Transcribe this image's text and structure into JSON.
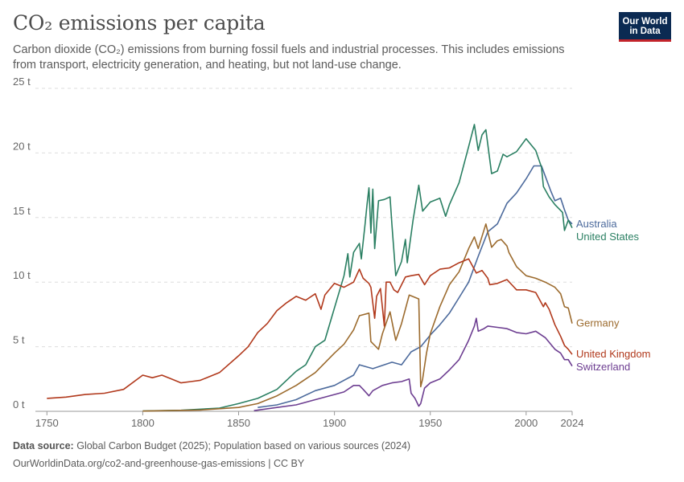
{
  "header": {
    "title": "CO₂ emissions per capita",
    "subtitle": "Carbon dioxide (CO₂) emissions from burning fossil fuels and industrial processes. This includes emissions from transport, electricity generation, and heating, but not land-use change.",
    "logo_line1": "Our World",
    "logo_line2": "in Data"
  },
  "footer": {
    "source_label": "Data source:",
    "source_text": "Global Carbon Budget (2025); Population based on various sources (2024)",
    "url_text": "OurWorldinData.org/co2-and-greenhouse-gas-emissions | CC BY"
  },
  "chart_data": {
    "type": "line",
    "title": "CO₂ emissions per capita",
    "xlim": [
      1744,
      2024
    ],
    "ylim": [
      0,
      25
    ],
    "x_ticks": [
      1750,
      1800,
      1850,
      1900,
      1950,
      2000,
      2024
    ],
    "y_ticks": [
      0,
      5,
      10,
      15,
      20,
      25
    ],
    "y_tick_labels": [
      "0 t",
      "5 t",
      "10 t",
      "15 t",
      "20 t",
      "25 t"
    ],
    "grid": "horizontal dashed",
    "legend": "right, inline labels at line ends",
    "series": [
      {
        "name": "Australia",
        "color": "#4c6a9c",
        "points": [
          [
            1860,
            0.3
          ],
          [
            1870,
            0.5
          ],
          [
            1880,
            0.9
          ],
          [
            1890,
            1.6
          ],
          [
            1900,
            2.0
          ],
          [
            1910,
            2.8
          ],
          [
            1913,
            3.6
          ],
          [
            1920,
            3.3
          ],
          [
            1930,
            3.8
          ],
          [
            1935,
            3.6
          ],
          [
            1940,
            4.6
          ],
          [
            1945,
            5.0
          ],
          [
            1950,
            5.9
          ],
          [
            1955,
            6.7
          ],
          [
            1960,
            7.6
          ],
          [
            1965,
            8.8
          ],
          [
            1970,
            10.0
          ],
          [
            1975,
            12.0
          ],
          [
            1980,
            13.9
          ],
          [
            1985,
            14.5
          ],
          [
            1990,
            16.1
          ],
          [
            1995,
            16.9
          ],
          [
            2000,
            18.0
          ],
          [
            2004,
            19.0
          ],
          [
            2008,
            19.0
          ],
          [
            2010,
            18.2
          ],
          [
            2013,
            17.0
          ],
          [
            2015,
            16.3
          ],
          [
            2018,
            16.5
          ],
          [
            2020,
            15.6
          ],
          [
            2022,
            14.8
          ],
          [
            2024,
            14.5
          ]
        ]
      },
      {
        "name": "United States",
        "color": "#2a7f62",
        "points": [
          [
            1800,
            0.03
          ],
          [
            1820,
            0.08
          ],
          [
            1840,
            0.25
          ],
          [
            1850,
            0.6
          ],
          [
            1860,
            1.0
          ],
          [
            1870,
            1.7
          ],
          [
            1880,
            3.1
          ],
          [
            1885,
            3.6
          ],
          [
            1890,
            5.0
          ],
          [
            1895,
            5.5
          ],
          [
            1900,
            8.0
          ],
          [
            1905,
            10.5
          ],
          [
            1907,
            12.2
          ],
          [
            1908,
            10.4
          ],
          [
            1910,
            12.3
          ],
          [
            1913,
            13.0
          ],
          [
            1914,
            11.8
          ],
          [
            1916,
            14.5
          ],
          [
            1917,
            16.0
          ],
          [
            1918,
            17.3
          ],
          [
            1919,
            13.8
          ],
          [
            1920,
            17.2
          ],
          [
            1921,
            12.6
          ],
          [
            1923,
            16.3
          ],
          [
            1926,
            16.4
          ],
          [
            1929,
            16.6
          ],
          [
            1930,
            14.4
          ],
          [
            1932,
            10.5
          ],
          [
            1935,
            11.6
          ],
          [
            1937,
            13.3
          ],
          [
            1938,
            11.5
          ],
          [
            1941,
            14.8
          ],
          [
            1944,
            17.5
          ],
          [
            1946,
            15.5
          ],
          [
            1950,
            16.2
          ],
          [
            1955,
            16.5
          ],
          [
            1958,
            15.1
          ],
          [
            1960,
            16.0
          ],
          [
            1965,
            17.7
          ],
          [
            1970,
            20.5
          ],
          [
            1973,
            22.2
          ],
          [
            1975,
            20.2
          ],
          [
            1977,
            21.4
          ],
          [
            1979,
            21.8
          ],
          [
            1982,
            18.4
          ],
          [
            1985,
            18.6
          ],
          [
            1988,
            19.9
          ],
          [
            1990,
            19.7
          ],
          [
            1995,
            20.1
          ],
          [
            2000,
            21.1
          ],
          [
            2005,
            20.2
          ],
          [
            2008,
            18.9
          ],
          [
            2009,
            17.4
          ],
          [
            2012,
            16.6
          ],
          [
            2015,
            16.0
          ],
          [
            2019,
            15.4
          ],
          [
            2020,
            14.0
          ],
          [
            2022,
            14.8
          ],
          [
            2024,
            14.2
          ]
        ]
      },
      {
        "name": "Germany",
        "color": "#9c6b2e",
        "points": [
          [
            1800,
            0.02
          ],
          [
            1830,
            0.1
          ],
          [
            1850,
            0.3
          ],
          [
            1860,
            0.6
          ],
          [
            1870,
            1.2
          ],
          [
            1880,
            2.0
          ],
          [
            1890,
            3.0
          ],
          [
            1900,
            4.5
          ],
          [
            1905,
            5.2
          ],
          [
            1910,
            6.3
          ],
          [
            1913,
            7.4
          ],
          [
            1918,
            7.6
          ],
          [
            1919,
            5.4
          ],
          [
            1923,
            4.8
          ],
          [
            1925,
            6.0
          ],
          [
            1929,
            7.7
          ],
          [
            1932,
            5.5
          ],
          [
            1935,
            6.8
          ],
          [
            1939,
            9.0
          ],
          [
            1944,
            8.7
          ],
          [
            1945,
            1.9
          ],
          [
            1946,
            2.5
          ],
          [
            1948,
            4.5
          ],
          [
            1950,
            6.0
          ],
          [
            1955,
            8.1
          ],
          [
            1960,
            9.8
          ],
          [
            1965,
            10.8
          ],
          [
            1970,
            12.6
          ],
          [
            1973,
            13.5
          ],
          [
            1975,
            12.6
          ],
          [
            1979,
            14.5
          ],
          [
            1982,
            12.7
          ],
          [
            1985,
            13.2
          ],
          [
            1987,
            13.3
          ],
          [
            1990,
            12.8
          ],
          [
            1991,
            12.3
          ],
          [
            1995,
            11.2
          ],
          [
            2000,
            10.5
          ],
          [
            2005,
            10.3
          ],
          [
            2010,
            10.0
          ],
          [
            2015,
            9.6
          ],
          [
            2018,
            9.1
          ],
          [
            2020,
            8.1
          ],
          [
            2022,
            8.0
          ],
          [
            2024,
            6.8
          ]
        ]
      },
      {
        "name": "United Kingdom",
        "color": "#b1391c",
        "points": [
          [
            1750,
            1.0
          ],
          [
            1760,
            1.1
          ],
          [
            1770,
            1.3
          ],
          [
            1780,
            1.4
          ],
          [
            1790,
            1.7
          ],
          [
            1800,
            2.8
          ],
          [
            1805,
            2.6
          ],
          [
            1810,
            2.8
          ],
          [
            1815,
            2.5
          ],
          [
            1820,
            2.2
          ],
          [
            1825,
            2.3
          ],
          [
            1830,
            2.4
          ],
          [
            1840,
            3.0
          ],
          [
            1850,
            4.3
          ],
          [
            1855,
            5.0
          ],
          [
            1860,
            6.1
          ],
          [
            1865,
            6.8
          ],
          [
            1870,
            7.8
          ],
          [
            1875,
            8.4
          ],
          [
            1880,
            8.9
          ],
          [
            1885,
            8.6
          ],
          [
            1890,
            9.1
          ],
          [
            1893,
            7.9
          ],
          [
            1895,
            9.0
          ],
          [
            1900,
            9.9
          ],
          [
            1905,
            9.6
          ],
          [
            1910,
            10.0
          ],
          [
            1913,
            11.0
          ],
          [
            1915,
            10.3
          ],
          [
            1918,
            9.9
          ],
          [
            1919,
            9.6
          ],
          [
            1921,
            7.2
          ],
          [
            1922,
            8.9
          ],
          [
            1924,
            9.5
          ],
          [
            1926,
            6.6
          ],
          [
            1927,
            10.0
          ],
          [
            1929,
            10.0
          ],
          [
            1931,
            9.4
          ],
          [
            1933,
            9.2
          ],
          [
            1937,
            10.4
          ],
          [
            1940,
            10.5
          ],
          [
            1944,
            10.6
          ],
          [
            1947,
            9.8
          ],
          [
            1950,
            10.5
          ],
          [
            1955,
            11.0
          ],
          [
            1960,
            11.1
          ],
          [
            1965,
            11.5
          ],
          [
            1970,
            11.8
          ],
          [
            1974,
            10.7
          ],
          [
            1977,
            10.9
          ],
          [
            1980,
            10.3
          ],
          [
            1981,
            9.8
          ],
          [
            1985,
            9.9
          ],
          [
            1990,
            10.2
          ],
          [
            1995,
            9.4
          ],
          [
            2000,
            9.4
          ],
          [
            2005,
            9.2
          ],
          [
            2009,
            8.1
          ],
          [
            2010,
            8.4
          ],
          [
            2012,
            7.9
          ],
          [
            2015,
            6.7
          ],
          [
            2018,
            5.8
          ],
          [
            2020,
            5.1
          ],
          [
            2022,
            4.8
          ],
          [
            2024,
            4.4
          ]
        ]
      },
      {
        "name": "Switzerland",
        "color": "#6d3e91",
        "points": [
          [
            1858,
            0.05
          ],
          [
            1870,
            0.3
          ],
          [
            1880,
            0.5
          ],
          [
            1890,
            0.9
          ],
          [
            1900,
            1.3
          ],
          [
            1905,
            1.5
          ],
          [
            1910,
            2.0
          ],
          [
            1913,
            2.0
          ],
          [
            1915,
            1.7
          ],
          [
            1918,
            1.2
          ],
          [
            1920,
            1.6
          ],
          [
            1925,
            2.0
          ],
          [
            1930,
            2.2
          ],
          [
            1935,
            2.3
          ],
          [
            1939,
            2.5
          ],
          [
            1940,
            1.4
          ],
          [
            1942,
            1.0
          ],
          [
            1944,
            0.4
          ],
          [
            1945,
            0.6
          ],
          [
            1947,
            1.8
          ],
          [
            1950,
            2.2
          ],
          [
            1955,
            2.5
          ],
          [
            1960,
            3.2
          ],
          [
            1965,
            4.0
          ],
          [
            1970,
            5.5
          ],
          [
            1973,
            6.6
          ],
          [
            1974,
            7.2
          ],
          [
            1975,
            6.2
          ],
          [
            1978,
            6.4
          ],
          [
            1980,
            6.6
          ],
          [
            1985,
            6.5
          ],
          [
            1990,
            6.4
          ],
          [
            1995,
            6.1
          ],
          [
            2000,
            6.0
          ],
          [
            2005,
            6.2
          ],
          [
            2010,
            5.7
          ],
          [
            2015,
            4.8
          ],
          [
            2018,
            4.5
          ],
          [
            2020,
            4.0
          ],
          [
            2022,
            4.0
          ],
          [
            2024,
            3.5
          ]
        ]
      }
    ]
  }
}
